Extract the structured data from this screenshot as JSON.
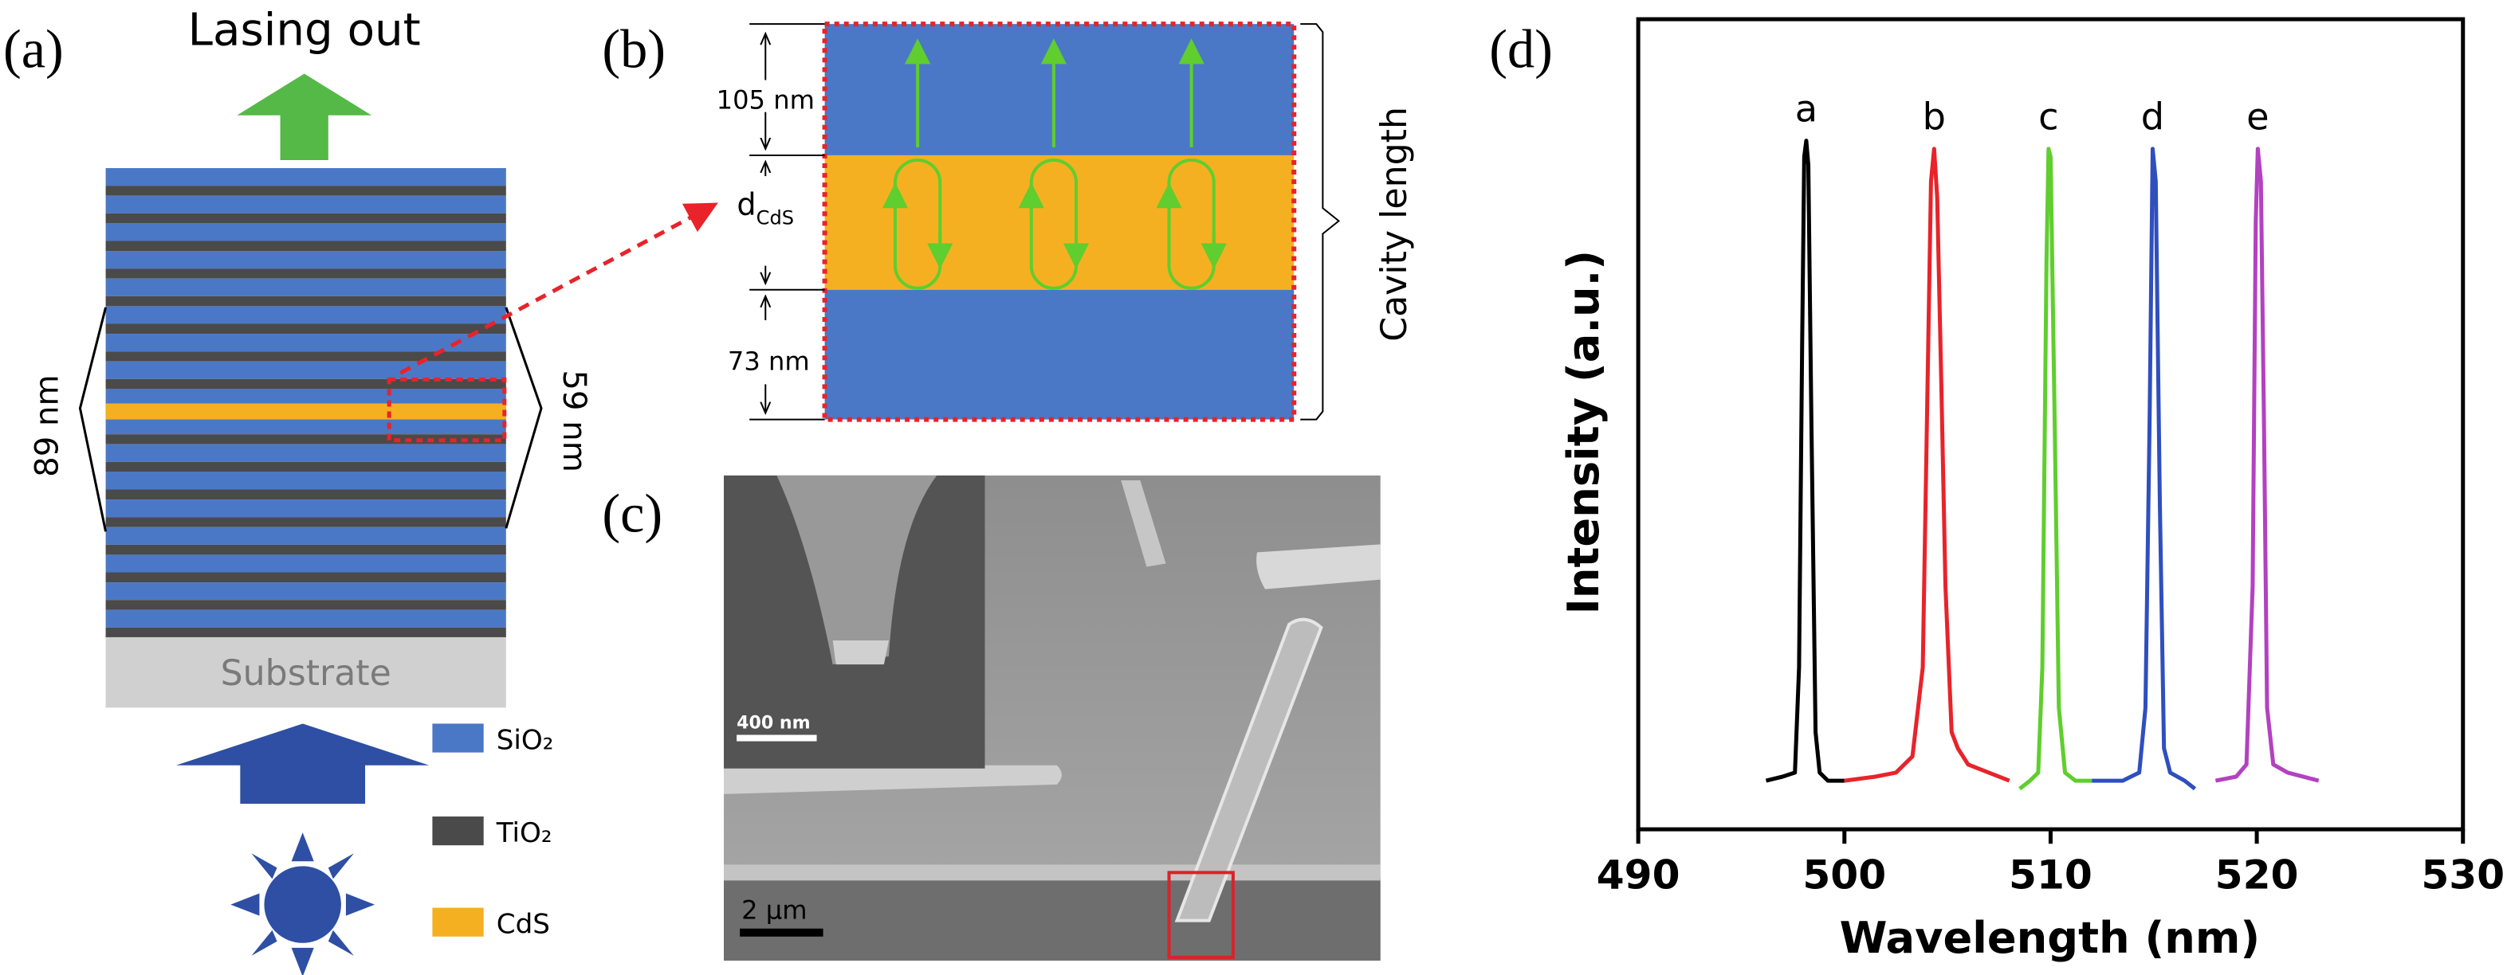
{
  "panel_a": {
    "label": "(a)",
    "title": "Lasing out",
    "substrate": "Substrate",
    "left_thickness": "89 nm",
    "right_thickness": "59 nm",
    "legend": [
      "SiO₂",
      "TiO₂",
      "CdS"
    ]
  },
  "panel_b": {
    "label": "(b)",
    "top_thickness": "105 nm",
    "d": "d",
    "d_sub": "CdS",
    "bottom_thickness": "73 nm",
    "cavity": "Cavity length"
  },
  "panel_c": {
    "label": "(c)",
    "inset_scale": "400 nm",
    "scale": "2 µm"
  },
  "chart_data": {
    "type": "line",
    "panel_label": "(d)",
    "x_label": "Wavelength (nm)",
    "y_label": "Intensity (a.u.)",
    "xlim": [
      490,
      530
    ],
    "xticks": [
      490,
      500,
      510,
      520,
      530
    ],
    "ylim": [
      0,
      1
    ],
    "series": [
      {
        "name": "a",
        "color": "#000000",
        "x": [
          496.2,
          497.0,
          497.6,
          497.8,
          497.95,
          498.05,
          498.15,
          498.25,
          498.4,
          498.6,
          498.8,
          499.2,
          500.0
        ],
        "values": [
          0.06,
          0.065,
          0.07,
          0.2,
          0.6,
          0.83,
          0.85,
          0.82,
          0.5,
          0.12,
          0.07,
          0.06,
          0.06
        ]
      },
      {
        "name": "b",
        "color": "#e8232a",
        "x": [
          500.0,
          501.5,
          502.5,
          503.3,
          503.8,
          504.0,
          504.2,
          504.35,
          504.5,
          504.7,
          504.9,
          505.2,
          505.5,
          506.0,
          507.0,
          508.0
        ],
        "values": [
          0.06,
          0.065,
          0.07,
          0.09,
          0.2,
          0.5,
          0.8,
          0.84,
          0.78,
          0.55,
          0.3,
          0.12,
          0.1,
          0.08,
          0.07,
          0.06
        ]
      },
      {
        "name": "c",
        "color": "#5fce2e",
        "x": [
          508.5,
          509.0,
          509.4,
          509.6,
          509.8,
          509.9,
          510.0,
          510.2,
          510.4,
          510.7,
          511.2,
          512.0
        ],
        "values": [
          0.05,
          0.06,
          0.07,
          0.2,
          0.7,
          0.84,
          0.83,
          0.5,
          0.15,
          0.07,
          0.06,
          0.06
        ]
      },
      {
        "name": "d",
        "color": "#2f4fbf",
        "x": [
          512.0,
          513.5,
          514.3,
          514.6,
          514.8,
          514.95,
          515.1,
          515.3,
          515.5,
          515.8,
          516.5,
          517.0
        ],
        "values": [
          0.06,
          0.06,
          0.07,
          0.15,
          0.5,
          0.84,
          0.8,
          0.4,
          0.1,
          0.07,
          0.06,
          0.05
        ]
      },
      {
        "name": "e",
        "color": "#b341c0",
        "x": [
          518.0,
          519.0,
          519.5,
          519.8,
          519.95,
          520.05,
          520.2,
          520.35,
          520.5,
          520.8,
          521.5,
          523.0
        ],
        "values": [
          0.06,
          0.065,
          0.08,
          0.3,
          0.75,
          0.84,
          0.8,
          0.5,
          0.15,
          0.08,
          0.07,
          0.06
        ]
      }
    ]
  }
}
